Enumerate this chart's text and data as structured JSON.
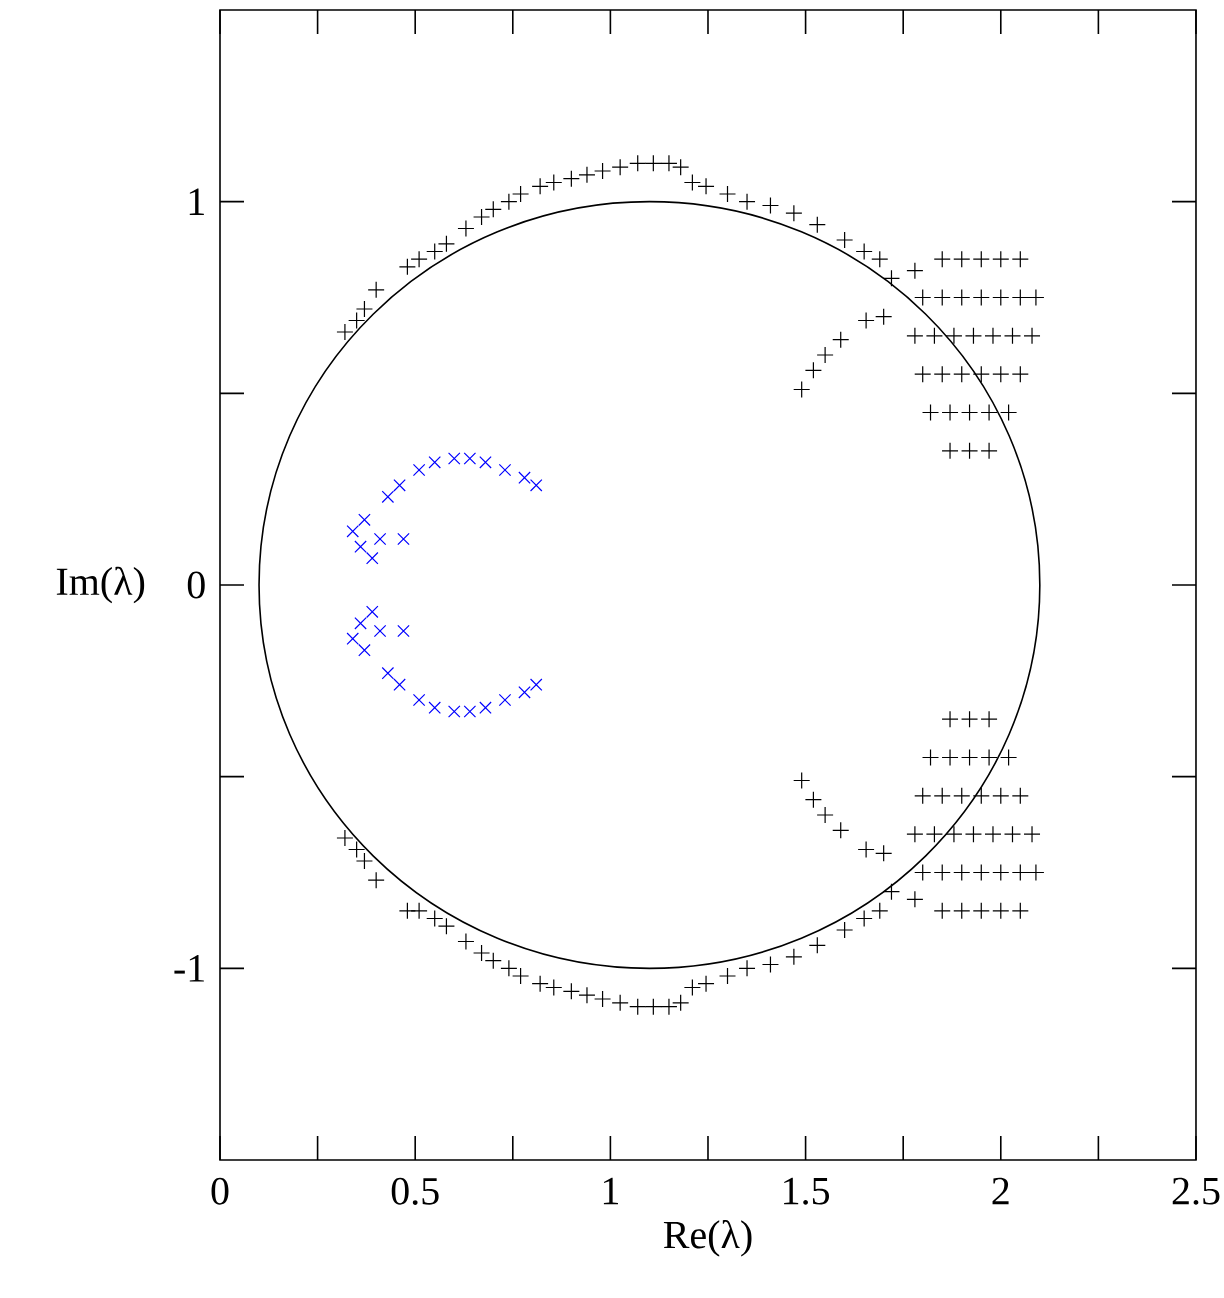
{
  "chart_data": {
    "type": "scatter",
    "xlabel": "Re(λ)",
    "ylabel": "Im(λ)",
    "xlim": [
      0,
      2.5
    ],
    "ylim": [
      -1.5,
      1.5
    ],
    "xticks": [
      0,
      {
        "value": 0.25,
        "label": null
      },
      0.5,
      {
        "value": 0.75,
        "label": null
      },
      1,
      {
        "value": 1.25,
        "label": null
      },
      1.5,
      {
        "value": 1.75,
        "label": null
      },
      2,
      {
        "value": 2.25,
        "label": null
      },
      2.5
    ],
    "yticks": [
      -1,
      {
        "value": -0.5,
        "label": null
      },
      0,
      {
        "value": 0.5,
        "label": null
      },
      1
    ],
    "grid": false,
    "series": [
      {
        "color": "#000000",
        "marker": "plus",
        "x": [
          0.32,
          0.35,
          0.37,
          0.4,
          0.48,
          0.51,
          0.55,
          0.58,
          0.63,
          0.67,
          0.7,
          0.74,
          0.77,
          0.82,
          0.855,
          0.9,
          0.94,
          0.98,
          1.025,
          1.07,
          1.11,
          1.15,
          1.18,
          1.21,
          1.245,
          1.3,
          1.35,
          1.41,
          1.47,
          1.53,
          1.6,
          1.65,
          1.69,
          1.72,
          1.78,
          1.7,
          1.49,
          1.52,
          1.55,
          1.59,
          1.655,
          1.85,
          1.9,
          1.95,
          2.0,
          2.05,
          1.8,
          1.85,
          1.9,
          1.95,
          2.0,
          2.05,
          2.09,
          1.78,
          1.83,
          1.88,
          1.93,
          1.98,
          2.03,
          2.08,
          1.8,
          1.85,
          1.9,
          1.95,
          2.0,
          2.05,
          1.82,
          1.87,
          1.92,
          1.97,
          2.02,
          1.87,
          1.92,
          1.97,
          0.32,
          0.35,
          0.37,
          0.4,
          0.48,
          0.51,
          0.55,
          0.58,
          0.63,
          0.67,
          0.7,
          0.74,
          0.77,
          0.82,
          0.855,
          0.9,
          0.94,
          0.98,
          1.025,
          1.07,
          1.11,
          1.15,
          1.18,
          1.21,
          1.245,
          1.3,
          1.35,
          1.41,
          1.47,
          1.53,
          1.6,
          1.65,
          1.69,
          1.72,
          1.78,
          1.7,
          1.49,
          1.52,
          1.55,
          1.59,
          1.655,
          1.85,
          1.9,
          1.95,
          2.0,
          2.05,
          1.8,
          1.85,
          1.9,
          1.95,
          2.0,
          2.05,
          2.09,
          1.78,
          1.83,
          1.88,
          1.93,
          1.98,
          2.03,
          2.08,
          1.8,
          1.85,
          1.9,
          1.95,
          2.0,
          2.05,
          1.82,
          1.87,
          1.92,
          1.97,
          2.02,
          1.87,
          1.92,
          1.97
        ],
        "values": [
          0.66,
          0.69,
          0.72,
          0.77,
          0.83,
          0.85,
          0.87,
          0.89,
          0.93,
          0.96,
          0.98,
          1.0,
          1.02,
          1.04,
          1.05,
          1.06,
          1.07,
          1.08,
          1.09,
          1.1,
          1.1,
          1.1,
          1.09,
          1.05,
          1.04,
          1.02,
          1.0,
          0.99,
          0.97,
          0.94,
          0.9,
          0.87,
          0.85,
          0.8,
          0.82,
          0.7,
          0.51,
          0.56,
          0.6,
          0.64,
          0.69,
          0.85,
          0.85,
          0.85,
          0.85,
          0.85,
          0.75,
          0.75,
          0.75,
          0.75,
          0.75,
          0.75,
          0.75,
          0.65,
          0.65,
          0.65,
          0.65,
          0.65,
          0.65,
          0.65,
          0.55,
          0.55,
          0.55,
          0.55,
          0.55,
          0.55,
          0.45,
          0.45,
          0.45,
          0.45,
          0.45,
          0.35,
          0.35,
          0.35,
          -0.66,
          -0.69,
          -0.72,
          -0.77,
          -0.85,
          -0.85,
          -0.87,
          -0.89,
          -0.93,
          -0.96,
          -0.98,
          -1.0,
          -1.02,
          -1.04,
          -1.05,
          -1.06,
          -1.07,
          -1.08,
          -1.09,
          -1.1,
          -1.1,
          -1.1,
          -1.09,
          -1.05,
          -1.04,
          -1.02,
          -1.0,
          -0.99,
          -0.97,
          -0.94,
          -0.9,
          -0.87,
          -0.85,
          -0.8,
          -0.82,
          -0.7,
          -0.51,
          -0.56,
          -0.6,
          -0.64,
          -0.69,
          -0.85,
          -0.85,
          -0.85,
          -0.85,
          -0.85,
          -0.75,
          -0.75,
          -0.75,
          -0.75,
          -0.75,
          -0.75,
          -0.75,
          -0.65,
          -0.65,
          -0.65,
          -0.65,
          -0.65,
          -0.65,
          -0.65,
          -0.55,
          -0.55,
          -0.55,
          -0.55,
          -0.55,
          -0.55,
          -0.45,
          -0.45,
          -0.45,
          -0.45,
          -0.45,
          -0.35,
          -0.35,
          -0.35
        ]
      },
      {
        "color": "#0000ff",
        "marker": "cross",
        "x": [
          0.34,
          0.36,
          0.39,
          0.37,
          0.41,
          0.43,
          0.46,
          0.47,
          0.51,
          0.55,
          0.6,
          0.64,
          0.68,
          0.73,
          0.78,
          0.81,
          0.34,
          0.36,
          0.39,
          0.37,
          0.41,
          0.43,
          0.46,
          0.47,
          0.51,
          0.55,
          0.6,
          0.64,
          0.68,
          0.73,
          0.78,
          0.81
        ],
        "values": [
          0.14,
          0.1,
          0.07,
          0.17,
          0.12,
          0.23,
          0.26,
          0.12,
          0.3,
          0.32,
          0.33,
          0.33,
          0.32,
          0.3,
          0.28,
          0.26,
          -0.14,
          -0.1,
          -0.07,
          -0.17,
          -0.12,
          -0.23,
          -0.26,
          -0.12,
          -0.3,
          -0.32,
          -0.33,
          -0.33,
          -0.32,
          -0.3,
          -0.28,
          -0.26
        ]
      }
    ]
  }
}
